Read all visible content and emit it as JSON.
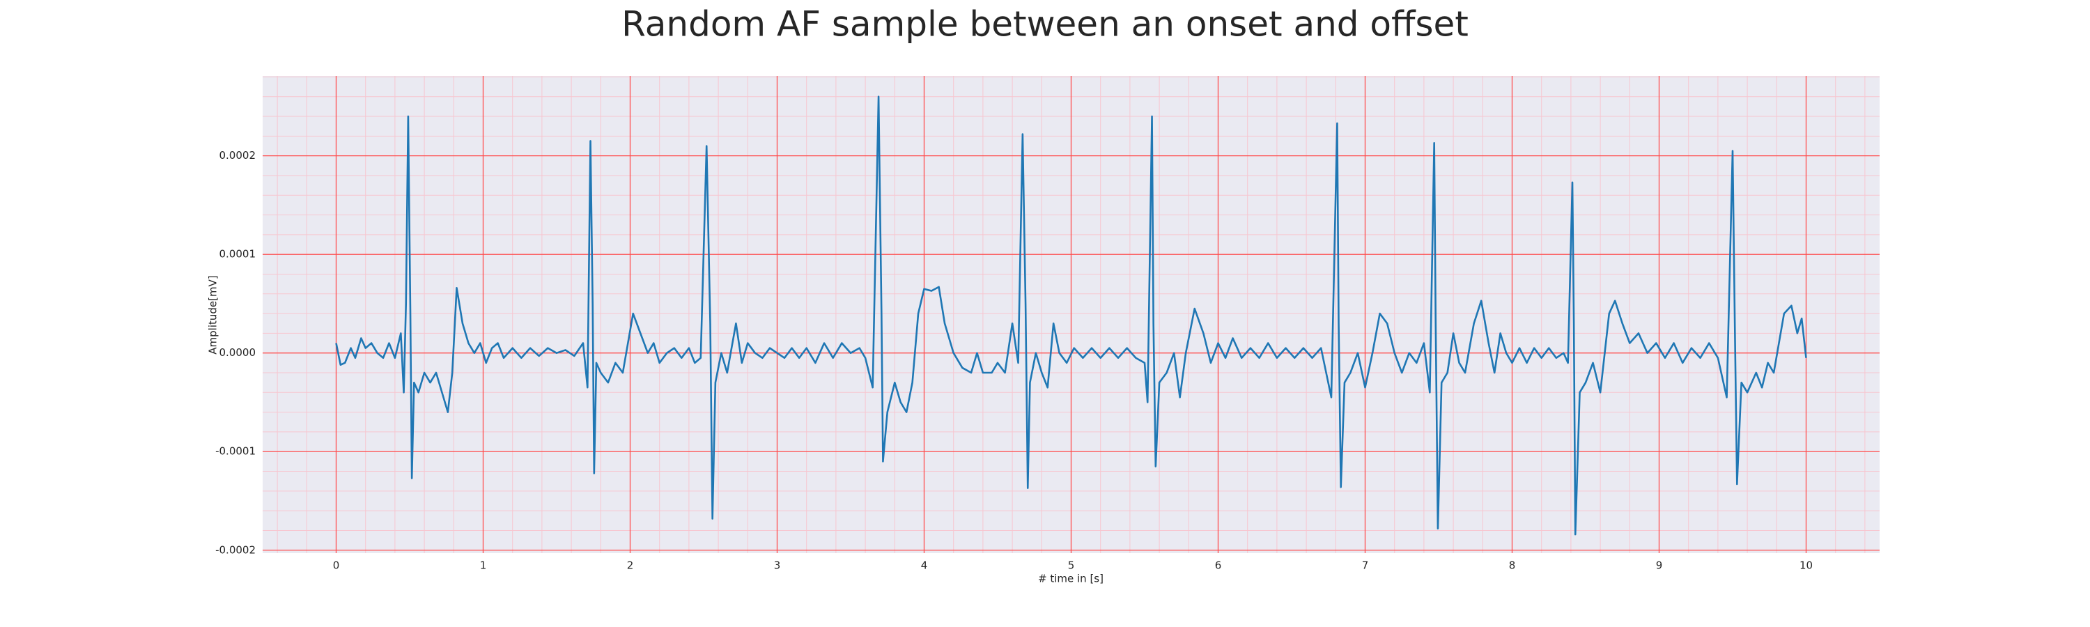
{
  "chart_data": {
    "type": "line",
    "title": "Random AF sample between an onset and offset",
    "xlabel": "# time in [s]",
    "ylabel": "Amplitude[mV]",
    "xlim": [
      -0.5,
      10.5
    ],
    "ylim": [
      -0.000203,
      0.000281
    ],
    "xticks": [
      0,
      1,
      2,
      3,
      4,
      5,
      6,
      7,
      8,
      9,
      10
    ],
    "yticks": [
      -0.0002,
      -0.0001,
      {
        "value": 0,
        "label": "0.0000"
      },
      0.0001,
      0.0002
    ],
    "grid": true,
    "minor_grid": 5,
    "grid_color": "#ff4d4d",
    "minor_grid_color": "#f7c6d0",
    "background": "#eaeaf2",
    "color": "#1f77b4",
    "x": [
      0,
      0.03,
      0.06,
      0.1,
      0.13,
      0.17,
      0.2,
      0.24,
      0.28,
      0.32,
      0.36,
      0.4,
      0.44,
      0.46,
      0.475,
      0.49,
      0.505,
      0.515,
      0.53,
      0.56,
      0.6,
      0.64,
      0.68,
      0.72,
      0.76,
      0.79,
      0.82,
      0.86,
      0.9,
      0.94,
      0.98,
      1.02,
      1.06,
      1.1,
      1.14,
      1.2,
      1.26,
      1.32,
      1.38,
      1.44,
      1.5,
      1.56,
      1.62,
      1.68,
      1.71,
      1.73,
      1.745,
      1.755,
      1.77,
      1.8,
      1.85,
      1.9,
      1.95,
      2.02,
      2.07,
      2.12,
      2.16,
      2.2,
      2.25,
      2.3,
      2.35,
      2.4,
      2.44,
      2.48,
      2.52,
      2.545,
      2.56,
      2.58,
      2.62,
      2.66,
      2.72,
      2.76,
      2.8,
      2.85,
      2.9,
      2.95,
      3.0,
      3.05,
      3.1,
      3.15,
      3.2,
      3.26,
      3.32,
      3.38,
      3.44,
      3.5,
      3.56,
      3.6,
      3.65,
      3.69,
      3.71,
      3.72,
      3.75,
      3.8,
      3.84,
      3.88,
      3.92,
      3.96,
      4.0,
      4.05,
      4.1,
      4.14,
      4.2,
      4.26,
      4.32,
      4.36,
      4.4,
      4.46,
      4.5,
      4.55,
      4.6,
      4.64,
      4.67,
      4.69,
      4.705,
      4.72,
      4.76,
      4.8,
      4.84,
      4.88,
      4.92,
      4.97,
      5.02,
      5.08,
      5.14,
      5.2,
      5.26,
      5.32,
      5.38,
      5.44,
      5.5,
      5.52,
      5.55,
      5.56,
      5.575,
      5.6,
      5.65,
      5.7,
      5.74,
      5.78,
      5.84,
      5.9,
      5.95,
      6.0,
      6.05,
      6.1,
      6.16,
      6.22,
      6.28,
      6.34,
      6.4,
      6.46,
      6.52,
      6.58,
      6.64,
      6.7,
      6.77,
      6.81,
      6.82,
      6.835,
      6.86,
      6.9,
      6.95,
      7.0,
      7.05,
      7.1,
      7.15,
      7.2,
      7.25,
      7.3,
      7.35,
      7.4,
      7.44,
      7.47,
      7.48,
      7.495,
      7.52,
      7.56,
      7.6,
      7.64,
      7.68,
      7.74,
      7.79,
      7.84,
      7.88,
      7.92,
      7.96,
      8.0,
      8.05,
      8.1,
      8.15,
      8.2,
      8.25,
      8.3,
      8.35,
      8.38,
      8.41,
      8.42,
      8.43,
      8.46,
      8.5,
      8.55,
      8.6,
      8.66,
      8.7,
      8.75,
      8.8,
      8.86,
      8.92,
      8.98,
      9.04,
      9.1,
      9.16,
      9.22,
      9.28,
      9.34,
      9.4,
      9.46,
      9.5,
      9.515,
      9.53,
      9.56,
      9.6,
      9.66,
      9.7,
      9.74,
      9.78,
      9.85,
      9.9,
      9.94,
      9.97,
      10.0
    ],
    "values": [
      1e-05,
      -1.2e-05,
      -1e-05,
      5e-06,
      -5e-06,
      1.5e-05,
      5e-06,
      1e-05,
      0,
      -5e-06,
      1e-05,
      -5e-06,
      2e-05,
      -4e-05,
      5e-05,
      0.00024,
      4e-05,
      -0.000127,
      -3e-05,
      -4e-05,
      -2e-05,
      -3e-05,
      -2e-05,
      -4e-05,
      -6e-05,
      -2e-05,
      6.6e-05,
      3e-05,
      1e-05,
      0,
      1e-05,
      -1e-05,
      5e-06,
      1e-05,
      -5e-06,
      5e-06,
      -5e-06,
      5e-06,
      -3e-06,
      5e-06,
      0,
      3e-06,
      -3e-06,
      1e-05,
      -3.5e-05,
      0.000215,
      5e-05,
      -0.000122,
      -1e-05,
      -2e-05,
      -3e-05,
      -1e-05,
      -2e-05,
      4e-05,
      2e-05,
      0,
      1e-05,
      -1e-05,
      0,
      5e-06,
      -5e-06,
      5e-06,
      -1e-05,
      -5e-06,
      0.00021,
      3e-05,
      -0.000168,
      -3e-05,
      0,
      -2e-05,
      3e-05,
      -1e-05,
      1e-05,
      0,
      -5e-06,
      5e-06,
      0,
      -5e-06,
      5e-06,
      -5e-06,
      5e-06,
      -1e-05,
      1e-05,
      -5e-06,
      1e-05,
      0,
      5e-06,
      -5e-06,
      -3.5e-05,
      0.00026,
      4e-05,
      -0.00011,
      -6e-05,
      -3e-05,
      -5e-05,
      -6e-05,
      -3e-05,
      4e-05,
      6.5e-05,
      6.3e-05,
      6.7e-05,
      3e-05,
      0,
      -1.5e-05,
      -2e-05,
      0,
      -2e-05,
      -2e-05,
      -1e-05,
      -2e-05,
      3e-05,
      -1e-05,
      0.000222,
      5e-05,
      -0.000137,
      -3e-05,
      0,
      -2e-05,
      -3.5e-05,
      3e-05,
      0,
      -1e-05,
      5e-06,
      -5e-06,
      5e-06,
      -5e-06,
      5e-06,
      -5e-06,
      5e-06,
      -5e-06,
      -1e-05,
      -5e-05,
      0.00024,
      3e-05,
      -0.000115,
      -3e-05,
      -2e-05,
      0,
      -4.5e-05,
      0,
      4.5e-05,
      2e-05,
      -1e-05,
      1e-05,
      -5e-06,
      1.5e-05,
      -5e-06,
      5e-06,
      -5e-06,
      1e-05,
      -5e-06,
      5e-06,
      -5e-06,
      5e-06,
      -5e-06,
      5e-06,
      -4.5e-05,
      0.000233,
      3e-05,
      -0.000136,
      -3e-05,
      -2e-05,
      0,
      -3.5e-05,
      0,
      4e-05,
      3e-05,
      0,
      -2e-05,
      0,
      -1e-05,
      1e-05,
      -4e-05,
      0.000213,
      3e-05,
      -0.000178,
      -3e-05,
      -2e-05,
      2e-05,
      -1e-05,
      -2e-05,
      3e-05,
      5.3e-05,
      1e-05,
      -2e-05,
      2e-05,
      0,
      -1e-05,
      5e-06,
      -1e-05,
      5e-06,
      -5e-06,
      5e-06,
      -5e-06,
      0,
      -1e-05,
      0.000173,
      3e-05,
      -0.000184,
      -4e-05,
      -3e-05,
      -1e-05,
      -4e-05,
      4e-05,
      5.3e-05,
      3e-05,
      1e-05,
      2e-05,
      0,
      1e-05,
      -5e-06,
      1e-05,
      -1e-05,
      5e-06,
      -5e-06,
      1e-05,
      -5e-06,
      -4.5e-05,
      0.000205,
      3e-05,
      -0.000133,
      -3e-05,
      -4e-05,
      -2e-05,
      -3.5e-05,
      -1e-05,
      -2e-05,
      4e-05,
      4.8e-05,
      2e-05,
      3.5e-05,
      -5e-06
    ]
  }
}
